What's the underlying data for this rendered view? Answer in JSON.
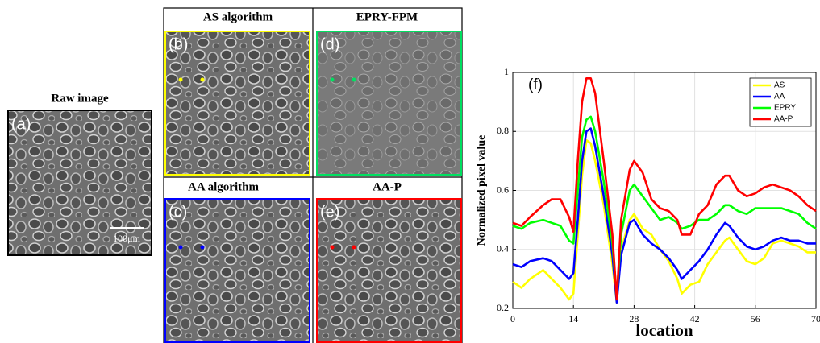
{
  "figure": {
    "raw": {
      "title": "Raw image",
      "label": "(a)",
      "scale_bar": "100μm"
    },
    "panels": [
      {
        "title": "AS algorithm",
        "label": "(b)",
        "color": "#ffff00"
      },
      {
        "title": "EPRY-FPM",
        "label": "(d)",
        "color": "#00e060"
      },
      {
        "title": "AA algorithm",
        "label": "(c)",
        "color": "#0000ff"
      },
      {
        "title": "AA-P",
        "label": "(e)",
        "color": "#ff0000"
      }
    ]
  },
  "chart_data": {
    "type": "line",
    "annotation": "(f)",
    "xlabel": "location",
    "ylabel": "Normalized pixel value",
    "x": [
      0,
      2,
      4,
      7,
      9,
      11,
      13,
      14,
      15,
      16,
      17,
      18,
      19,
      21,
      23,
      24,
      25,
      27,
      28,
      30,
      32,
      34,
      36,
      38,
      39,
      41,
      43,
      45,
      47,
      49,
      50,
      52,
      54,
      56,
      58,
      60,
      62,
      64,
      66,
      68,
      70
    ],
    "series": [
      {
        "name": "AS",
        "color": "#ffff00",
        "values": [
          0.29,
          0.27,
          0.3,
          0.33,
          0.3,
          0.27,
          0.23,
          0.25,
          0.45,
          0.65,
          0.77,
          0.76,
          0.7,
          0.55,
          0.35,
          0.22,
          0.4,
          0.5,
          0.52,
          0.47,
          0.45,
          0.4,
          0.36,
          0.3,
          0.25,
          0.28,
          0.29,
          0.35,
          0.39,
          0.43,
          0.44,
          0.4,
          0.36,
          0.35,
          0.37,
          0.42,
          0.43,
          0.42,
          0.41,
          0.39,
          0.39
        ]
      },
      {
        "name": "AA",
        "color": "#0000ff",
        "values": [
          0.35,
          0.34,
          0.36,
          0.37,
          0.36,
          0.33,
          0.3,
          0.32,
          0.5,
          0.7,
          0.8,
          0.81,
          0.75,
          0.58,
          0.38,
          0.22,
          0.38,
          0.49,
          0.5,
          0.45,
          0.42,
          0.4,
          0.37,
          0.33,
          0.3,
          0.33,
          0.36,
          0.4,
          0.45,
          0.49,
          0.48,
          0.44,
          0.41,
          0.4,
          0.41,
          0.43,
          0.44,
          0.43,
          0.43,
          0.42,
          0.42
        ]
      },
      {
        "name": "EPRY",
        "color": "#00ff00",
        "values": [
          0.48,
          0.47,
          0.49,
          0.5,
          0.49,
          0.48,
          0.43,
          0.42,
          0.6,
          0.78,
          0.84,
          0.85,
          0.8,
          0.63,
          0.42,
          0.24,
          0.45,
          0.6,
          0.62,
          0.58,
          0.54,
          0.5,
          0.51,
          0.49,
          0.47,
          0.48,
          0.5,
          0.5,
          0.52,
          0.55,
          0.55,
          0.53,
          0.52,
          0.54,
          0.54,
          0.54,
          0.54,
          0.53,
          0.52,
          0.49,
          0.47
        ]
      },
      {
        "name": "AA-P",
        "color": "#ff0000",
        "values": [
          0.49,
          0.48,
          0.51,
          0.55,
          0.57,
          0.57,
          0.51,
          0.46,
          0.7,
          0.9,
          0.98,
          0.98,
          0.93,
          0.7,
          0.45,
          0.23,
          0.5,
          0.67,
          0.7,
          0.66,
          0.57,
          0.54,
          0.53,
          0.5,
          0.45,
          0.45,
          0.52,
          0.55,
          0.62,
          0.65,
          0.65,
          0.6,
          0.58,
          0.59,
          0.61,
          0.62,
          0.61,
          0.6,
          0.58,
          0.55,
          0.53
        ]
      }
    ],
    "xlim": [
      0,
      70
    ],
    "ylim": [
      0.2,
      1
    ],
    "xticks": [
      0,
      14,
      28,
      42,
      56,
      70
    ],
    "yticks": [
      0.2,
      0.4,
      0.6,
      0.8,
      1
    ],
    "grid": true,
    "legend": "upper right"
  }
}
